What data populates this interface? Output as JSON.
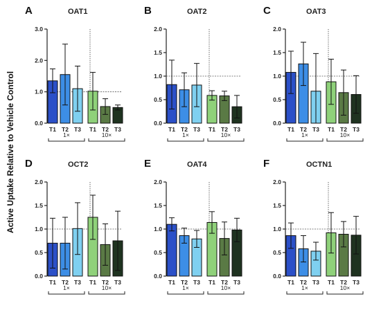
{
  "ylabel": "Active Uptake Relative to Vehicle Control",
  "colors": {
    "T1_1x": "#2b50c8",
    "T2_1x": "#3d8ee6",
    "T3_1x": "#7fd0f0",
    "T1_10x": "#8fd17a",
    "T2_10x": "#5a7a45",
    "T3_10x": "#1f3320",
    "reference_line": "#555555"
  },
  "chart_data": [
    {
      "type": "bar",
      "panel": "A",
      "title": "OAT1",
      "ylim": [
        0,
        3.0
      ],
      "yticks": [
        "0.0",
        "1.0",
        "2.0",
        "3.0"
      ],
      "reference_line": 1.0,
      "categories": [
        "T1",
        "T2",
        "T3",
        "T1",
        "T2",
        "T3"
      ],
      "groups": [
        "1×",
        "10×"
      ],
      "values": [
        1.35,
        1.55,
        1.1,
        1.02,
        0.53,
        0.5
      ],
      "errors": [
        0.38,
        0.97,
        0.72,
        0.6,
        0.25,
        0.08
      ]
    },
    {
      "type": "bar",
      "panel": "B",
      "title": "OAT2",
      "ylim": [
        0,
        2.0
      ],
      "yticks": [
        "0.0",
        "0.5",
        "1.0",
        "1.5",
        "2.0"
      ],
      "reference_line": 1.0,
      "categories": [
        "T1",
        "T2",
        "T3",
        "T1",
        "T2",
        "T3"
      ],
      "groups": [
        "1×",
        "10×"
      ],
      "values": [
        0.82,
        0.71,
        0.81,
        0.59,
        0.58,
        0.35
      ],
      "errors": [
        0.52,
        0.36,
        0.46,
        0.1,
        0.1,
        0.24
      ]
    },
    {
      "type": "bar",
      "panel": "C",
      "title": "OAT3",
      "ylim": [
        0,
        2.0
      ],
      "yticks": [
        "0.0",
        "0.5",
        "1.0",
        "1.5",
        "2.0"
      ],
      "reference_line": 1.0,
      "categories": [
        "T1",
        "T2",
        "T3",
        "T1",
        "T2",
        "T3"
      ],
      "groups": [
        "1×",
        "10×"
      ],
      "values": [
        1.08,
        1.26,
        0.68,
        0.88,
        0.65,
        0.61
      ],
      "errors": [
        0.45,
        0.46,
        0.8,
        0.48,
        0.48,
        0.4
      ]
    },
    {
      "type": "bar",
      "panel": "D",
      "title": "OCT2",
      "ylim": [
        0,
        2.0
      ],
      "yticks": [
        "0.0",
        "0.5",
        "1.0",
        "1.5",
        "2.0"
      ],
      "reference_line": 1.0,
      "categories": [
        "T1",
        "T2",
        "T3",
        "T1",
        "T2",
        "T3"
      ],
      "groups": [
        "1×",
        "10×"
      ],
      "values": [
        0.7,
        0.7,
        1.01,
        1.25,
        0.67,
        0.75
      ],
      "errors": [
        0.53,
        0.55,
        0.55,
        0.47,
        0.44,
        0.63
      ]
    },
    {
      "type": "bar",
      "panel": "E",
      "title": "OAT4",
      "ylim": [
        0,
        2.0
      ],
      "yticks": [
        "0.0",
        "0.5",
        "1.0",
        "1.5",
        "2.0"
      ],
      "reference_line": 1.0,
      "categories": [
        "T1",
        "T2",
        "T3",
        "T1",
        "T2",
        "T3"
      ],
      "groups": [
        "1×",
        "10×"
      ],
      "values": [
        1.1,
        0.86,
        0.79,
        1.14,
        0.8,
        0.98
      ],
      "errors": [
        0.14,
        0.16,
        0.18,
        0.23,
        0.35,
        0.25
      ]
    },
    {
      "type": "bar",
      "panel": "F",
      "title": "OCTN1",
      "ylim": [
        0,
        2.0
      ],
      "yticks": [
        "0.0",
        "0.5",
        "1.0",
        "1.5",
        "2.0"
      ],
      "reference_line": 1.0,
      "categories": [
        "T1",
        "T2",
        "T3",
        "T1",
        "T2",
        "T3"
      ],
      "groups": [
        "1×",
        "10×"
      ],
      "values": [
        0.86,
        0.58,
        0.53,
        0.92,
        0.89,
        0.87
      ],
      "errors": [
        0.27,
        0.28,
        0.19,
        0.43,
        0.27,
        0.4
      ]
    }
  ]
}
